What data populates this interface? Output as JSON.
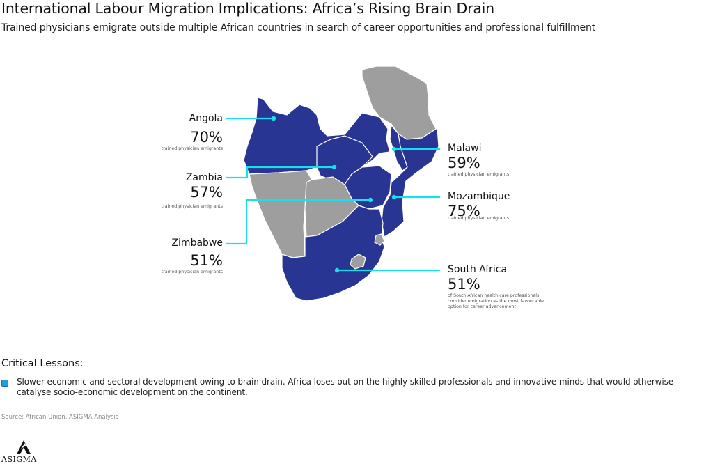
{
  "header": {
    "title": "International Labour Migration Implications: Africa’s Rising Brain Drain",
    "subtitle": "Trained physicians emigrate outside multiple African countries in search of career opportunities and professional fulfillment"
  },
  "colors": {
    "highlight_country": "#283593",
    "other_country": "#9e9e9e",
    "leader_line": "#18e0ec",
    "bullet": "#1f9fe0"
  },
  "callouts": [
    {
      "country": "Angola",
      "value": "70%",
      "note": "trained physician emigrants"
    },
    {
      "country": "Zambia",
      "value": "57%",
      "note": "trained physician emigrants"
    },
    {
      "country": "Zimbabwe",
      "value": "51%",
      "note": "trained physician emigrants"
    },
    {
      "country": "Malawi",
      "value": "59%",
      "note": "trained physician emigrants"
    },
    {
      "country": "Mozambique",
      "value": "75%",
      "note": "trained physician emigrants"
    },
    {
      "country": "South Africa",
      "value": "51%",
      "note": "of South African health care professionals consider emigration as the most favourable option for career advancement",
      "note_lines": [
        "of South African health care professionals",
        "consider emigration as the most favourable",
        "option for career advancement"
      ]
    }
  ],
  "lessons": {
    "title": "Critical Lessons:",
    "items": [
      "Slower economic and sectoral development owing to brain drain. Africa loses out on the highly skilled professionals and innovative minds that would otherwise catalyse socio-economic development on the continent."
    ]
  },
  "source": "Source: African Union, ASIGMA Analysis",
  "logo": {
    "text": "ASIGMA"
  }
}
